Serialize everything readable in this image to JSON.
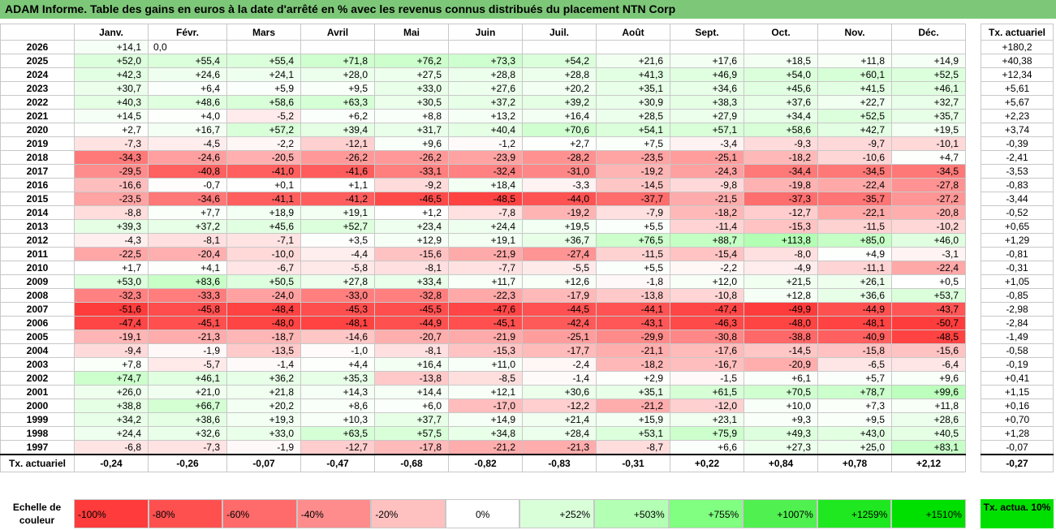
{
  "title": "ADAM Informe. Table des gains en euros à la date d'arrêté en % avec les revenus connus distribués du placement NTN Corp",
  "months": [
    "Janv.",
    "Févr.",
    "Mars",
    "Avril",
    "Mai",
    "Juin",
    "Juil.",
    "Août",
    "Sept.",
    "Oct.",
    "Nov.",
    "Déc."
  ],
  "side_header": "Tx. actuariel",
  "rows": [
    {
      "year": "2026",
      "values": [
        "+14,1",
        "0,0",
        "",
        "",
        "",
        "",
        "",
        "",
        "",
        "",
        "",
        ""
      ],
      "tx": "+180,2"
    },
    {
      "year": "2025",
      "values": [
        "+52,0",
        "+55,4",
        "+55,4",
        "+71,8",
        "+76,2",
        "+73,3",
        "+54,2",
        "+21,6",
        "+17,6",
        "+18,5",
        "+11,8",
        "+14,9"
      ],
      "tx": "+40,38"
    },
    {
      "year": "2024",
      "values": [
        "+42,3",
        "+24,6",
        "+24,1",
        "+28,0",
        "+27,5",
        "+28,8",
        "+28,8",
        "+41,3",
        "+46,9",
        "+54,0",
        "+60,1",
        "+52,5"
      ],
      "tx": "+12,34"
    },
    {
      "year": "2023",
      "values": [
        "+30,7",
        "+6,4",
        "+5,9",
        "+9,5",
        "+33,0",
        "+27,6",
        "+20,2",
        "+35,1",
        "+34,6",
        "+45,6",
        "+41,5",
        "+46,1"
      ],
      "tx": "+5,61"
    },
    {
      "year": "2022",
      "values": [
        "+40,3",
        "+48,6",
        "+58,6",
        "+63,3",
        "+30,5",
        "+37,2",
        "+39,2",
        "+30,9",
        "+38,3",
        "+37,6",
        "+22,7",
        "+32,7"
      ],
      "tx": "+5,67"
    },
    {
      "year": "2021",
      "values": [
        "+14,5",
        "+4,0",
        "-5,2",
        "+6,2",
        "+8,8",
        "+13,2",
        "+16,4",
        "+28,5",
        "+27,9",
        "+34,4",
        "+52,5",
        "+35,7"
      ],
      "tx": "+2,23"
    },
    {
      "year": "2020",
      "values": [
        "+2,7",
        "+16,7",
        "+57,2",
        "+39,4",
        "+31,7",
        "+40,4",
        "+70,6",
        "+54,1",
        "+57,1",
        "+58,6",
        "+42,7",
        "+19,5"
      ],
      "tx": "+3,74"
    },
    {
      "year": "2019",
      "values": [
        "-7,3",
        "-4,5",
        "-2,2",
        "-12,1",
        "+9,6",
        "-1,2",
        "+2,7",
        "+7,5",
        "-3,4",
        "-9,3",
        "-9,7",
        "-10,1"
      ],
      "tx": "-0,39"
    },
    {
      "year": "2018",
      "values": [
        "-34,3",
        "-24,6",
        "-20,5",
        "-26,2",
        "-26,2",
        "-23,9",
        "-28,2",
        "-23,5",
        "-25,1",
        "-18,2",
        "-10,6",
        "+4,7"
      ],
      "tx": "-2,41"
    },
    {
      "year": "2017",
      "values": [
        "-29,5",
        "-40,8",
        "-41,0",
        "-41,6",
        "-33,1",
        "-32,4",
        "-31,0",
        "-19,2",
        "-24,3",
        "-34,4",
        "-34,5",
        "-34,5"
      ],
      "tx": "-3,53"
    },
    {
      "year": "2016",
      "values": [
        "-16,6",
        "-0,7",
        "+0,1",
        "+1,1",
        "-9,2",
        "+18,4",
        "-3,3",
        "-14,5",
        "-9,8",
        "-19,8",
        "-22,4",
        "-27,8"
      ],
      "tx": "-0,83"
    },
    {
      "year": "2015",
      "values": [
        "-23,5",
        "-34,6",
        "-41,1",
        "-41,2",
        "-46,5",
        "-48,5",
        "-44,0",
        "-37,7",
        "-21,5",
        "-37,3",
        "-35,7",
        "-27,2"
      ],
      "tx": "-3,44"
    },
    {
      "year": "2014",
      "values": [
        "-8,8",
        "+7,7",
        "+18,9",
        "+19,1",
        "+1,2",
        "-7,8",
        "-19,2",
        "-7,9",
        "-18,2",
        "-12,7",
        "-22,1",
        "-20,8"
      ],
      "tx": "-0,52"
    },
    {
      "year": "2013",
      "values": [
        "+39,3",
        "+37,2",
        "+45,6",
        "+52,7",
        "+23,4",
        "+24,4",
        "+19,5",
        "+5,5",
        "-11,4",
        "-15,3",
        "-11,5",
        "-10,2"
      ],
      "tx": "+0,65"
    },
    {
      "year": "2012",
      "values": [
        "-4,3",
        "-8,1",
        "-7,1",
        "+3,5",
        "+12,9",
        "+19,1",
        "+36,7",
        "+76,5",
        "+88,7",
        "+113,8",
        "+85,0",
        "+46,0"
      ],
      "tx": "+1,29"
    },
    {
      "year": "2011",
      "values": [
        "-22,5",
        "-20,4",
        "-10,0",
        "-4,4",
        "-15,6",
        "-21,9",
        "-27,4",
        "-11,5",
        "-15,4",
        "-8,0",
        "+4,9",
        "-3,1"
      ],
      "tx": "-0,81"
    },
    {
      "year": "2010",
      "values": [
        "+1,7",
        "+4,1",
        "-6,7",
        "-5,8",
        "-8,1",
        "-7,7",
        "-5,5",
        "+5,5",
        "-2,2",
        "-4,9",
        "-11,1",
        "-22,4"
      ],
      "tx": "-0,31"
    },
    {
      "year": "2009",
      "values": [
        "+53,0",
        "+83,6",
        "+50,5",
        "+27,8",
        "+33,4",
        "+11,7",
        "+12,6",
        "-1,8",
        "+12,0",
        "+21,5",
        "+26,1",
        "+0,5"
      ],
      "tx": "+1,05"
    },
    {
      "year": "2008",
      "values": [
        "-32,3",
        "-33,3",
        "-24,0",
        "-33,0",
        "-32,8",
        "-22,3",
        "-17,9",
        "-13,8",
        "-10,8",
        "+12,8",
        "+36,6",
        "+53,7"
      ],
      "tx": "-0,85"
    },
    {
      "year": "2007",
      "values": [
        "-51,6",
        "-45,8",
        "-48,4",
        "-45,3",
        "-45,5",
        "-47,6",
        "-44,5",
        "-44,1",
        "-47,4",
        "-49,9",
        "-44,9",
        "-43,7"
      ],
      "tx": "-2,98"
    },
    {
      "year": "2006",
      "values": [
        "-47,4",
        "-45,1",
        "-48,0",
        "-48,1",
        "-44,9",
        "-45,1",
        "-42,4",
        "-43,1",
        "-46,3",
        "-48,0",
        "-48,1",
        "-50,7"
      ],
      "tx": "-2,84"
    },
    {
      "year": "2005",
      "values": [
        "-19,1",
        "-21,3",
        "-18,7",
        "-14,6",
        "-20,7",
        "-21,9",
        "-25,1",
        "-29,9",
        "-30,8",
        "-38,8",
        "-40,9",
        "-48,5"
      ],
      "tx": "-1,49"
    },
    {
      "year": "2004",
      "values": [
        "-9,4",
        "-1,9",
        "-13,5",
        "-1,0",
        "-8,1",
        "-15,3",
        "-17,7",
        "-21,1",
        "-17,6",
        "-14,5",
        "-15,8",
        "-15,6"
      ],
      "tx": "-0,58"
    },
    {
      "year": "2003",
      "values": [
        "+7,8",
        "-5,7",
        "-1,4",
        "+4,4",
        "+16,4",
        "+11,0",
        "-2,4",
        "-18,2",
        "-16,7",
        "-20,9",
        "-6,5",
        "-6,4"
      ],
      "tx": "-0,19"
    },
    {
      "year": "2002",
      "values": [
        "+74,7",
        "+46,1",
        "+36,2",
        "+35,3",
        "-13,8",
        "-8,5",
        "-1,4",
        "+2,9",
        "-1,5",
        "+6,1",
        "+5,7",
        "+9,6"
      ],
      "tx": "+0,41"
    },
    {
      "year": "2001",
      "values": [
        "+26,0",
        "+21,0",
        "+21,8",
        "+14,3",
        "+14,4",
        "+12,1",
        "+30,6",
        "+35,1",
        "+61,5",
        "+70,5",
        "+78,7",
        "+99,6"
      ],
      "tx": "+1,15"
    },
    {
      "year": "2000",
      "values": [
        "+38,8",
        "+66,7",
        "+20,2",
        "+8,6",
        "+6,0",
        "-17,0",
        "-12,2",
        "-21,2",
        "-12,0",
        "+10,0",
        "+7,3",
        "+11,8"
      ],
      "tx": "+0,16"
    },
    {
      "year": "1999",
      "values": [
        "+34,2",
        "+38,6",
        "+19,3",
        "+10,3",
        "+37,7",
        "+14,9",
        "+21,4",
        "+15,9",
        "+23,1",
        "+9,3",
        "+9,5",
        "+28,6"
      ],
      "tx": "+0,70"
    },
    {
      "year": "1998",
      "values": [
        "+24,4",
        "+32,6",
        "+33,0",
        "+63,5",
        "+57,5",
        "+34,8",
        "+28,4",
        "+53,1",
        "+75,9",
        "+49,3",
        "+43,0",
        "+40,5"
      ],
      "tx": "+1,28"
    },
    {
      "year": "1997",
      "values": [
        "-6,8",
        "-7,3",
        "-1,9",
        "-12,7",
        "-17,8",
        "-21,2",
        "-21,3",
        "-8,7",
        "+6,6",
        "+27,3",
        "+25,0",
        "+83,1"
      ],
      "tx": "-0,07"
    }
  ],
  "footer": {
    "label": "Tx. actuariel",
    "values": [
      "-0,24",
      "-0,26",
      "-0,07",
      "-0,47",
      "-0,68",
      "-0,82",
      "-0,83",
      "-0,31",
      "+0,22",
      "+0,84",
      "+0,78",
      "+2,12"
    ],
    "tx": "-0,27"
  },
  "legend": {
    "label": "Echelle de couleur",
    "items": [
      {
        "text": "-100%",
        "color": "#ff3b3b",
        "align": "left"
      },
      {
        "text": "-80%",
        "color": "#ff5050",
        "align": "left"
      },
      {
        "text": "-60%",
        "color": "#ff6a6a",
        "align": "left"
      },
      {
        "text": "-40%",
        "color": "#ff8c8c",
        "align": "left"
      },
      {
        "text": "-20%",
        "color": "#ffc0c0",
        "align": "left"
      },
      {
        "text": "0%",
        "color": "#ffffff",
        "align": "center"
      },
      {
        "text": "+252%",
        "color": "#d9ffd9",
        "align": "right"
      },
      {
        "text": "+503%",
        "color": "#b3ffb3",
        "align": "right"
      },
      {
        "text": "+755%",
        "color": "#80ff80",
        "align": "right"
      },
      {
        "text": "+1007%",
        "color": "#50f050",
        "align": "right"
      },
      {
        "text": "+1259%",
        "color": "#20e820",
        "align": "right"
      },
      {
        "text": "+1510%",
        "color": "#00e000",
        "align": "right"
      }
    ],
    "tx_label": "Tx. actua. 10%"
  }
}
